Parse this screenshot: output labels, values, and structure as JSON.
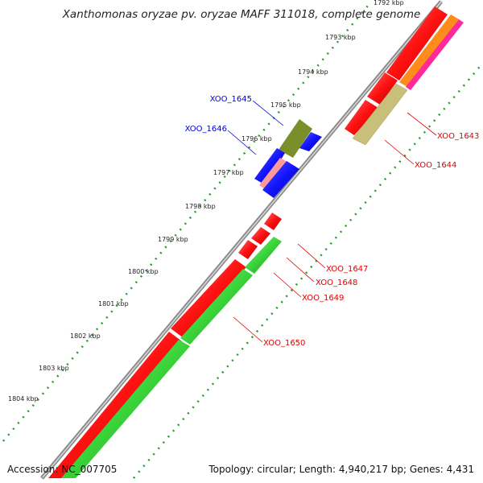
{
  "title": "Xanthomonas oryzae pv. oryzae MAFF 311018, complete genome",
  "footer": {
    "accession": "Accession: NC_007705",
    "summary": "Topology: circular; Length: 4,940,217 bp; Genes: 4,431"
  },
  "scale_unit": "kbp",
  "scale_ticks": [
    {
      "kbp": 1792,
      "label": "1792 kbp"
    },
    {
      "kbp": 1793,
      "label": "1793 kbp"
    },
    {
      "kbp": 1794,
      "label": "1794 kbp"
    },
    {
      "kbp": 1795,
      "label": "1795 kbp"
    },
    {
      "kbp": 1796,
      "label": "1796 kbp"
    },
    {
      "kbp": 1797,
      "label": "1797 kbp"
    },
    {
      "kbp": 1798,
      "label": "1798 kbp"
    },
    {
      "kbp": 1799,
      "label": "1799 kbp"
    },
    {
      "kbp": 1800,
      "label": "1800 kbp"
    },
    {
      "kbp": 1801,
      "label": "1801 kbp"
    },
    {
      "kbp": 1802,
      "label": "1802 kbp"
    },
    {
      "kbp": 1803,
      "label": "1803 kbp"
    },
    {
      "kbp": 1804,
      "label": "1804 kbp"
    }
  ],
  "genes": [
    {
      "id": "XOO_1643",
      "label": "XOO_1643",
      "strand": "forward",
      "color": "#ff1a1a",
      "label_color": "#e00000"
    },
    {
      "id": "XOO_1644",
      "label": "XOO_1644",
      "strand": "forward",
      "color": "#c8bf7a",
      "label_color": "#e00000"
    },
    {
      "id": "XOO_1645",
      "label": "XOO_1645",
      "strand": "reverse",
      "color": "#7a8f2a",
      "label_color": "#0000dd"
    },
    {
      "id": "XOO_1646",
      "label": "XOO_1646",
      "strand": "reverse",
      "color": "#1414ff",
      "label_color": "#0000dd"
    },
    {
      "id": "XOO_1647",
      "label": "XOO_1647",
      "strand": "forward",
      "color": "#ff1a1a",
      "label_color": "#e00000"
    },
    {
      "id": "XOO_1648",
      "label": "XOO_1648",
      "strand": "forward",
      "color": "#ff1a1a",
      "label_color": "#e00000"
    },
    {
      "id": "XOO_1649",
      "label": "XOO_1649",
      "strand": "forward",
      "color": "#3ad43a",
      "label_color": "#e00000"
    },
    {
      "id": "XOO_1650",
      "label": "XOO_1650",
      "strand": "forward",
      "color": "#3ad43a",
      "label_color": "#e00000"
    }
  ]
}
